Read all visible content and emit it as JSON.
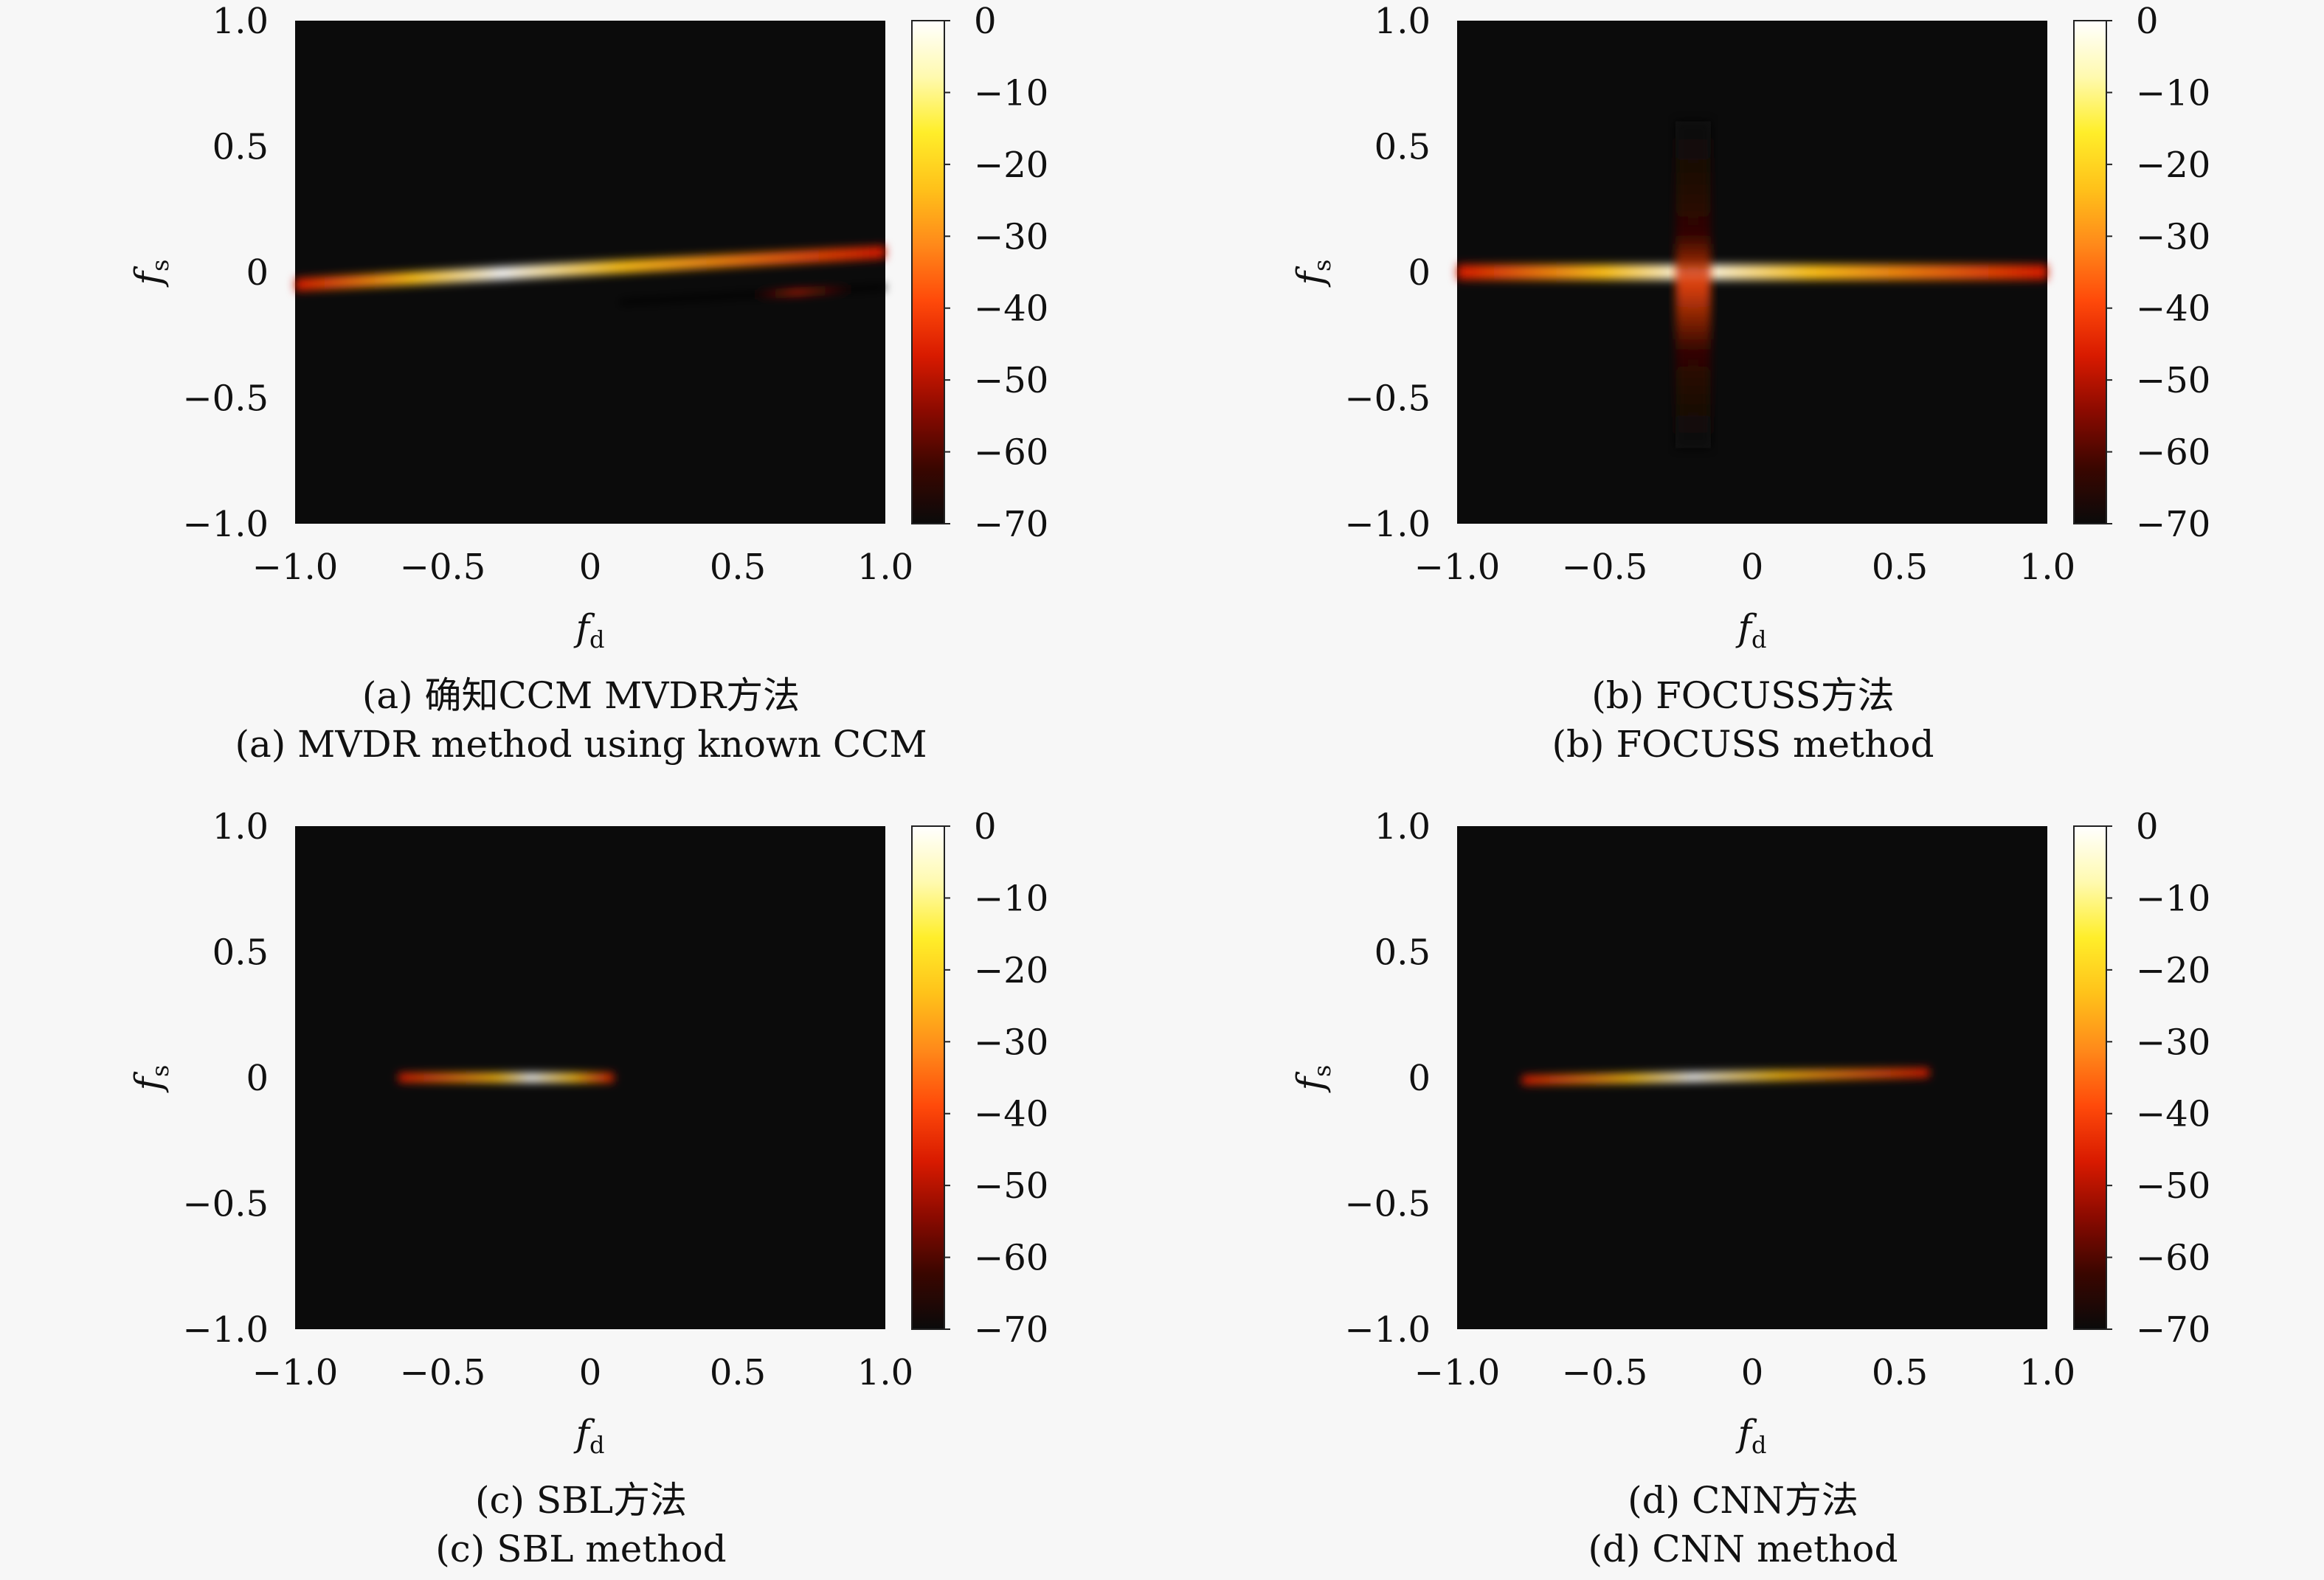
{
  "colors": {
    "background": "#f7f7f7",
    "plot_background": "#0b0b0b",
    "colormap": [
      "#0a0a0a",
      "#3a0600",
      "#8a0a00",
      "#d81a00",
      "#ff4a0a",
      "#ff8a1a",
      "#ffc21a",
      "#ffee2a",
      "#fffab0",
      "#ffffff"
    ]
  },
  "chart_data": [
    {
      "type": "heatmap",
      "xlabel": "f_d",
      "ylabel": "f_s",
      "xlim": [
        -1.0,
        1.0
      ],
      "ylim": [
        -1.0,
        1.0
      ],
      "xticks": [
        "−1.0",
        "−0.5",
        "0",
        "0.5",
        "1.0"
      ],
      "yticks": [
        "1.0",
        "0.5",
        "0",
        "−0.5",
        "−1.0"
      ],
      "colorbar_ticks": [
        "0",
        "−10",
        "−20",
        "−30",
        "−40",
        "−50",
        "−60",
        "−70"
      ],
      "colorbar_range_db": [
        -70,
        0
      ],
      "caption_cn": "(a) 确知CCM MVDR方法",
      "caption_en": "(a) MVDR method using known CCM",
      "features": [
        {
          "x0": -1.0,
          "y0": -0.05,
          "x1": 1.0,
          "y1": 0.08,
          "peak_x": -0.3,
          "peak_db": 0,
          "halfwidth": 0.025
        },
        {
          "x0": 0.1,
          "y0": -0.12,
          "x1": 1.0,
          "y1": -0.06,
          "peak_x": 0.7,
          "peak_db": -45,
          "halfwidth": 0.01
        }
      ]
    },
    {
      "type": "heatmap",
      "xlabel": "f_d",
      "ylabel": "f_s",
      "xlim": [
        -1.0,
        1.0
      ],
      "ylim": [
        -1.0,
        1.0
      ],
      "xticks": [
        "−1.0",
        "−0.5",
        "0",
        "0.5",
        "1.0"
      ],
      "yticks": [
        "1.0",
        "0.5",
        "0",
        "−0.5",
        "−1.0"
      ],
      "colorbar_ticks": [
        "0",
        "−10",
        "−20",
        "−30",
        "−40",
        "−50",
        "−60",
        "−70"
      ],
      "colorbar_range_db": [
        -70,
        0
      ],
      "caption_cn": "(b) FOCUSS方法",
      "caption_en": "(b) FOCUSS method",
      "features": [
        {
          "x0": -1.0,
          "y0": 0.0,
          "x1": 1.0,
          "y1": 0.0,
          "peak_x": -0.2,
          "peak_db": 0,
          "halfwidth": 0.03
        },
        {
          "x0": -0.2,
          "y0": -0.7,
          "x1": -0.2,
          "y1": 0.6,
          "peak_x": -0.2,
          "peak_db": -40,
          "halfwidth": 0.07
        }
      ]
    },
    {
      "type": "heatmap",
      "xlabel": "f_d",
      "ylabel": "f_s",
      "xlim": [
        -1.0,
        1.0
      ],
      "ylim": [
        -1.0,
        1.0
      ],
      "xticks": [
        "−1.0",
        "−0.5",
        "0",
        "0.5",
        "1.0"
      ],
      "yticks": [
        "1.0",
        "0.5",
        "0",
        "−0.5",
        "−1.0"
      ],
      "colorbar_ticks": [
        "0",
        "−10",
        "−20",
        "−30",
        "−40",
        "−50",
        "−60",
        "−70"
      ],
      "colorbar_range_db": [
        -70,
        0
      ],
      "caption_cn": "(c) SBL方法",
      "caption_en": "(c) SBL method",
      "features": [
        {
          "x0": -0.65,
          "y0": 0.0,
          "x1": 0.08,
          "y1": 0.0,
          "peak_x": -0.2,
          "peak_db": 0,
          "halfwidth": 0.018
        }
      ]
    },
    {
      "type": "heatmap",
      "xlabel": "f_d",
      "ylabel": "f_s",
      "xlim": [
        -1.0,
        1.0
      ],
      "ylim": [
        -1.0,
        1.0
      ],
      "xticks": [
        "−1.0",
        "−0.5",
        "0",
        "0.5",
        "1.0"
      ],
      "yticks": [
        "1.0",
        "0.5",
        "0",
        "−0.5",
        "−1.0"
      ],
      "colorbar_ticks": [
        "0",
        "−10",
        "−20",
        "−30",
        "−40",
        "−50",
        "−60",
        "−70"
      ],
      "colorbar_range_db": [
        -70,
        0
      ],
      "caption_cn": "(d) CNN方法",
      "caption_en": "(d) CNN method",
      "features": [
        {
          "x0": -0.78,
          "y0": -0.01,
          "x1": 0.6,
          "y1": 0.02,
          "peak_x": -0.2,
          "peak_db": 0,
          "halfwidth": 0.018
        }
      ]
    }
  ]
}
